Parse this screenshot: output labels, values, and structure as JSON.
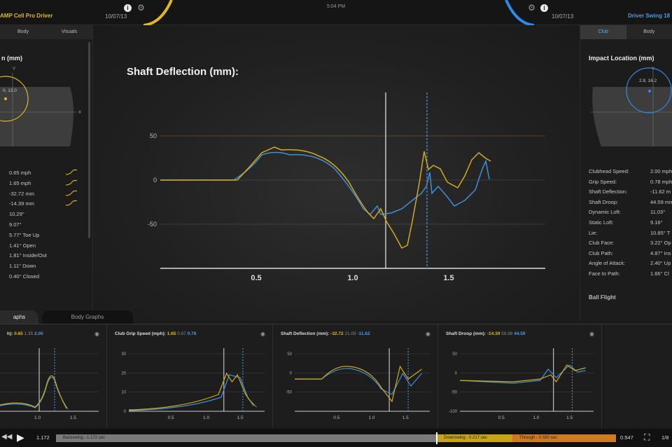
{
  "session": {
    "left_name": "AMP Cell Pro Driver",
    "left_date": "10/07/13",
    "right_name": "Driver Swing 18",
    "right_date": "10/07/13",
    "clock": "5:04 PM",
    "left_color": "#e2b817",
    "right_color": "#2f8be8"
  },
  "left_panel": {
    "tabs": [
      "Body",
      "Visuals"
    ],
    "title": "n (mm)",
    "impact_label": "0, 13.0",
    "values": [
      "0.65 mph",
      "1.65 mph",
      "-32.72 mm",
      "-14.39 mm",
      "10.29°",
      "9.07°",
      "5.77° Toe Up",
      "1.41° Open",
      "1.81° Inside/Out",
      "1.11° Down",
      "0.40° Closed"
    ]
  },
  "right_panel": {
    "tabs": [
      "Club",
      "Body"
    ],
    "title": "Impact Location (mm)",
    "impact_label": "2.8, 16.2",
    "metrics": [
      {
        "label": "Clubhead Speed:",
        "value": "2.00 mph"
      },
      {
        "label": "Grip Speed:",
        "value": "0.78 mph"
      },
      {
        "label": "Shaft Deflection:",
        "value": "-11.62 m"
      },
      {
        "label": "Shaft Droop:",
        "value": "44.59 mm"
      },
      {
        "label": "Dynamic Loft:",
        "value": "11.03°"
      },
      {
        "label": "Static Loft:",
        "value": "9.16°"
      },
      {
        "label": "Lie:",
        "value": "10.85° T"
      },
      {
        "label": "Club Face:",
        "value": "3.22° Op"
      },
      {
        "label": "Club Path:",
        "value": "4.87° Ins"
      },
      {
        "label": "Angle of Attack:",
        "value": "2.40° Up"
      },
      {
        "label": "Face to Path:",
        "value": "1.66° Cl"
      }
    ],
    "ball_flight": "Ball Flight"
  },
  "main_chart": {
    "title": "Shaft Deflection (mm):",
    "y_ticks": [
      "50",
      "0",
      "-50"
    ],
    "x_ticks": [
      "0.5",
      "1.0",
      "1.5"
    ]
  },
  "graph_tabs": [
    "aphs",
    "Body Graphs"
  ],
  "graphs": [
    {
      "title": "h):",
      "v1": "0.65",
      "v2": "1.35",
      "v3": "2.00",
      "x_ticks": [
        "1.0",
        "1.5"
      ],
      "y_ticks": []
    },
    {
      "title": "Club Grip Speed (mph):",
      "v1": "1.65",
      "v2": "0.87",
      "v3": "0.78",
      "x_ticks": [
        "0.5",
        "1.0",
        "1.5"
      ],
      "y_ticks": [
        "30",
        "20",
        "10",
        "0"
      ]
    },
    {
      "title": "Shaft Deflection (mm):",
      "v1": "-32.72",
      "v2": "21.09",
      "v3": "-11.62",
      "x_ticks": [
        "0.5",
        "1.0",
        "1.5"
      ],
      "y_ticks": [
        "50",
        "0",
        "-50"
      ]
    },
    {
      "title": "Shaft Droop (mm):",
      "v1": "-14.39",
      "v2": "58.98",
      "v3": "44.59",
      "x_ticks": [
        "0.5",
        "1.0",
        "1.5"
      ],
      "y_ticks": [
        "50",
        "0",
        "-50",
        "-100"
      ]
    }
  ],
  "timeline": {
    "current": "1.172",
    "backswing": "Backswing - 1.172 sec",
    "downswing": "Downswing - 0.217 sec",
    "through": "Through - 0.330 sec",
    "end": "0.547",
    "speed": "1/8"
  }
}
